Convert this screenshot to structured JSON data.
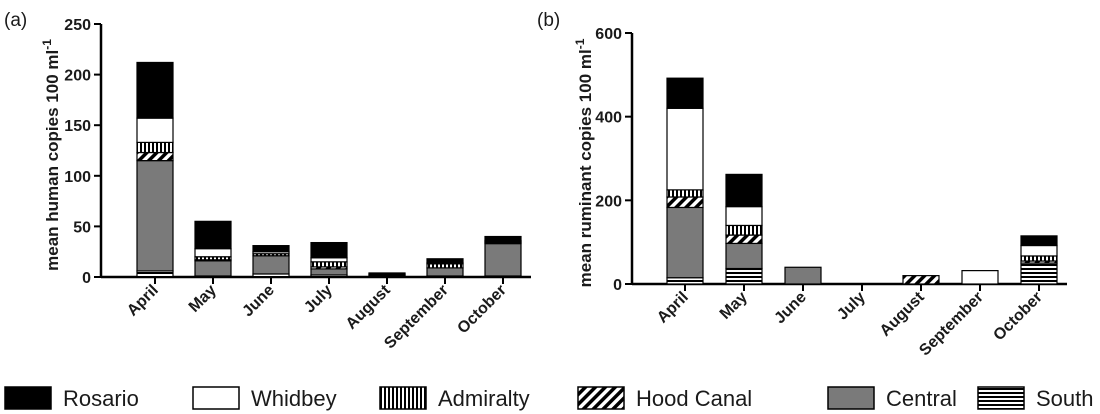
{
  "legend": [
    {
      "name": "Rosario",
      "pattern": "solid-black"
    },
    {
      "name": "Whidbey",
      "pattern": "white"
    },
    {
      "name": "Admiralty",
      "pattern": "vertical-stripes"
    },
    {
      "name": "Hood Canal",
      "pattern": "diagonal-stripes"
    },
    {
      "name": "Central",
      "pattern": "solid-gray"
    },
    {
      "name": "South",
      "pattern": "horizontal-stripes"
    }
  ],
  "colors": {
    "Rosario": "#000000",
    "Whidbey": "#ffffff",
    "Central": "#7a7a7a",
    "stripe": "#000000"
  },
  "chart_data": [
    {
      "type": "bar",
      "stacked": true,
      "panel_label": "(a)",
      "ylabel": "mean human copies 100 ml",
      "ylabel_sup": "-1",
      "ylim": [
        0,
        250
      ],
      "yticks": [
        0,
        50,
        100,
        150,
        200,
        250
      ],
      "categories": [
        "April",
        "May",
        "June",
        "July",
        "August",
        "September",
        "October"
      ],
      "series": [
        {
          "name": "South",
          "values": [
            6,
            1,
            3,
            2,
            1,
            1,
            1
          ]
        },
        {
          "name": "Central",
          "values": [
            109,
            15,
            18,
            6,
            1,
            8,
            32
          ]
        },
        {
          "name": "Hood Canal",
          "values": [
            8,
            1,
            0,
            2,
            1,
            0,
            1
          ]
        },
        {
          "name": "Admiralty",
          "values": [
            10,
            3,
            2,
            5,
            0,
            4,
            1
          ]
        },
        {
          "name": "Whidbey",
          "values": [
            24,
            8,
            2,
            4,
            0,
            1,
            1
          ]
        },
        {
          "name": "Rosario",
          "values": [
            55,
            27,
            6,
            15,
            1,
            4,
            4
          ]
        }
      ]
    },
    {
      "type": "bar",
      "stacked": true,
      "panel_label": "(b)",
      "ylabel": "mean ruminant copies 100 ml",
      "ylabel_sup": "-1",
      "ylim": [
        0,
        600
      ],
      "yticks": [
        0,
        200,
        400,
        600
      ],
      "categories": [
        "April",
        "May",
        "June",
        "July",
        "August",
        "September",
        "October"
      ],
      "series": [
        {
          "name": "South",
          "values": [
            15,
            37,
            0,
            0,
            0,
            0,
            50
          ]
        },
        {
          "name": "Central",
          "values": [
            168,
            60,
            40,
            0,
            0,
            0,
            0
          ]
        },
        {
          "name": "Hood Canal",
          "values": [
            25,
            20,
            0,
            0,
            20,
            0,
            5
          ]
        },
        {
          "name": "Admiralty",
          "values": [
            17,
            23,
            0,
            0,
            0,
            0,
            12
          ]
        },
        {
          "name": "Whidbey",
          "values": [
            195,
            45,
            0,
            0,
            0,
            32,
            25
          ]
        },
        {
          "name": "Rosario",
          "values": [
            72,
            77,
            0,
            0,
            0,
            0,
            23
          ]
        }
      ]
    }
  ]
}
